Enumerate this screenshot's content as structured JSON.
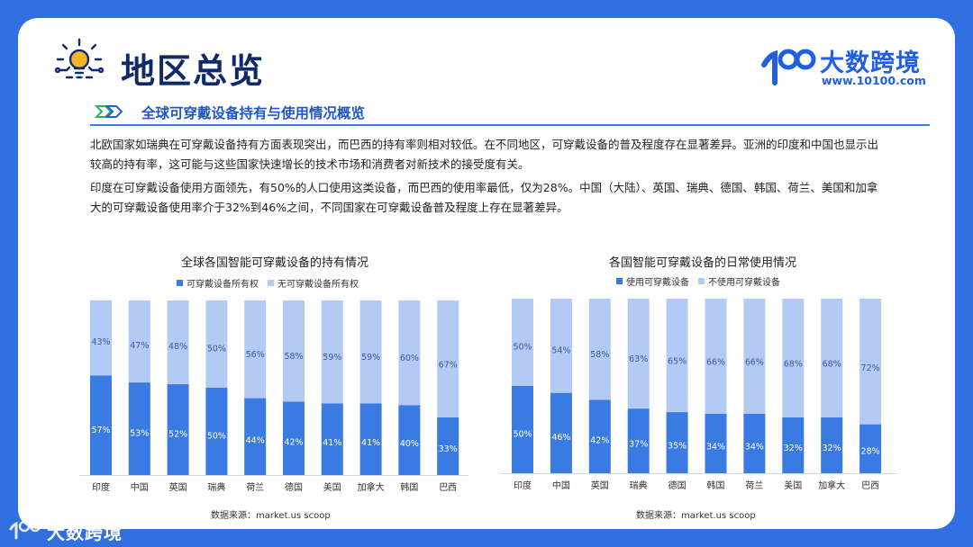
{
  "page": {
    "title": "地区总览",
    "logo_name": "大数跨境",
    "logo_url": "www.10100.com",
    "section_title": "全球可穿戴设备持有与使用情况概览",
    "paragraphs": [
      "北欧国家如瑞典在可穿戴设备持有方面表现突出，而巴西的持有率则相对较低。在不同地区，可穿戴设备的普及程度存在显著差异。亚洲的印度和中国也显示出较高的持有率，这可能与这些国家快速增长的技术市场和消费者对新技术的接受度有关。",
      "印度在可穿戴设备使用方面领先，有50%的人口使用这类设备，而巴西的使用率最低，仅为28%。中国（大陆）、英国、瑞典、德国、韩国、荷兰、美国和加拿大的可穿戴设备使用率介于32%到46%之间，不同国家在可穿戴设备普及程度上存在显著差异。"
    ],
    "footer_logo_name": "大数跨境"
  },
  "colors": {
    "dark": "#3a7ae3",
    "light": "#b3caf5",
    "title": "#0f2a6b",
    "accent": "#1f5fe0"
  },
  "icons": [
    "lightbulb-icon",
    "double-arrow-icon",
    "brand-logo-icon"
  ],
  "chart_data": [
    {
      "type": "bar",
      "stacked": true,
      "title": "全球各国智能可穿戴设备的持有情况",
      "categories": [
        "印度",
        "中国",
        "英国",
        "瑞典",
        "荷兰",
        "德国",
        "美国",
        "加拿大",
        "韩国",
        "巴西"
      ],
      "series": [
        {
          "name": "可穿戴设备所有权",
          "values": [
            57,
            53,
            52,
            50,
            44,
            42,
            41,
            41,
            40,
            33
          ]
        },
        {
          "name": "无可穿戴设备所有权",
          "values": [
            43,
            47,
            48,
            50,
            56,
            58,
            59,
            59,
            60,
            67
          ]
        }
      ],
      "value_labels": {
        "s0": [
          "57%",
          "53%",
          "52%",
          "50%",
          "44%",
          "42%",
          "41%",
          "41%",
          "40%",
          "33%"
        ],
        "s1": [
          "43%",
          "47%",
          "48%",
          "50%",
          "56%",
          "58%",
          "59%",
          "59%",
          "60%",
          "67%"
        ]
      },
      "ylim": [
        0,
        100
      ],
      "legend_position": "top",
      "source": "数据来源：market.us scoop"
    },
    {
      "type": "bar",
      "stacked": true,
      "title": "各国智能可穿戴设备的日常使用情况",
      "categories": [
        "印度",
        "中国",
        "英国",
        "瑞典",
        "德国",
        "韩国",
        "荷兰",
        "美国",
        "加拿大",
        "巴西"
      ],
      "series": [
        {
          "name": "使用可穿戴设备",
          "values": [
            50,
            46,
            42,
            37,
            35,
            34,
            34,
            32,
            32,
            28
          ]
        },
        {
          "name": "不使用可穿戴设备",
          "values": [
            50,
            54,
            58,
            63,
            65,
            66,
            66,
            68,
            68,
            72
          ]
        }
      ],
      "value_labels": {
        "s0": [
          "50%",
          "46%",
          "42%",
          "37%",
          "35%",
          "34%",
          "34%",
          "32%",
          "32%",
          "28%"
        ],
        "s1": [
          "50%",
          "54%",
          "58%",
          "63%",
          "65%",
          "66%",
          "66%",
          "68%",
          "68%",
          "72%"
        ]
      },
      "ylim": [
        0,
        100
      ],
      "legend_position": "top",
      "source": "数据来源：market.us scoop"
    }
  ]
}
